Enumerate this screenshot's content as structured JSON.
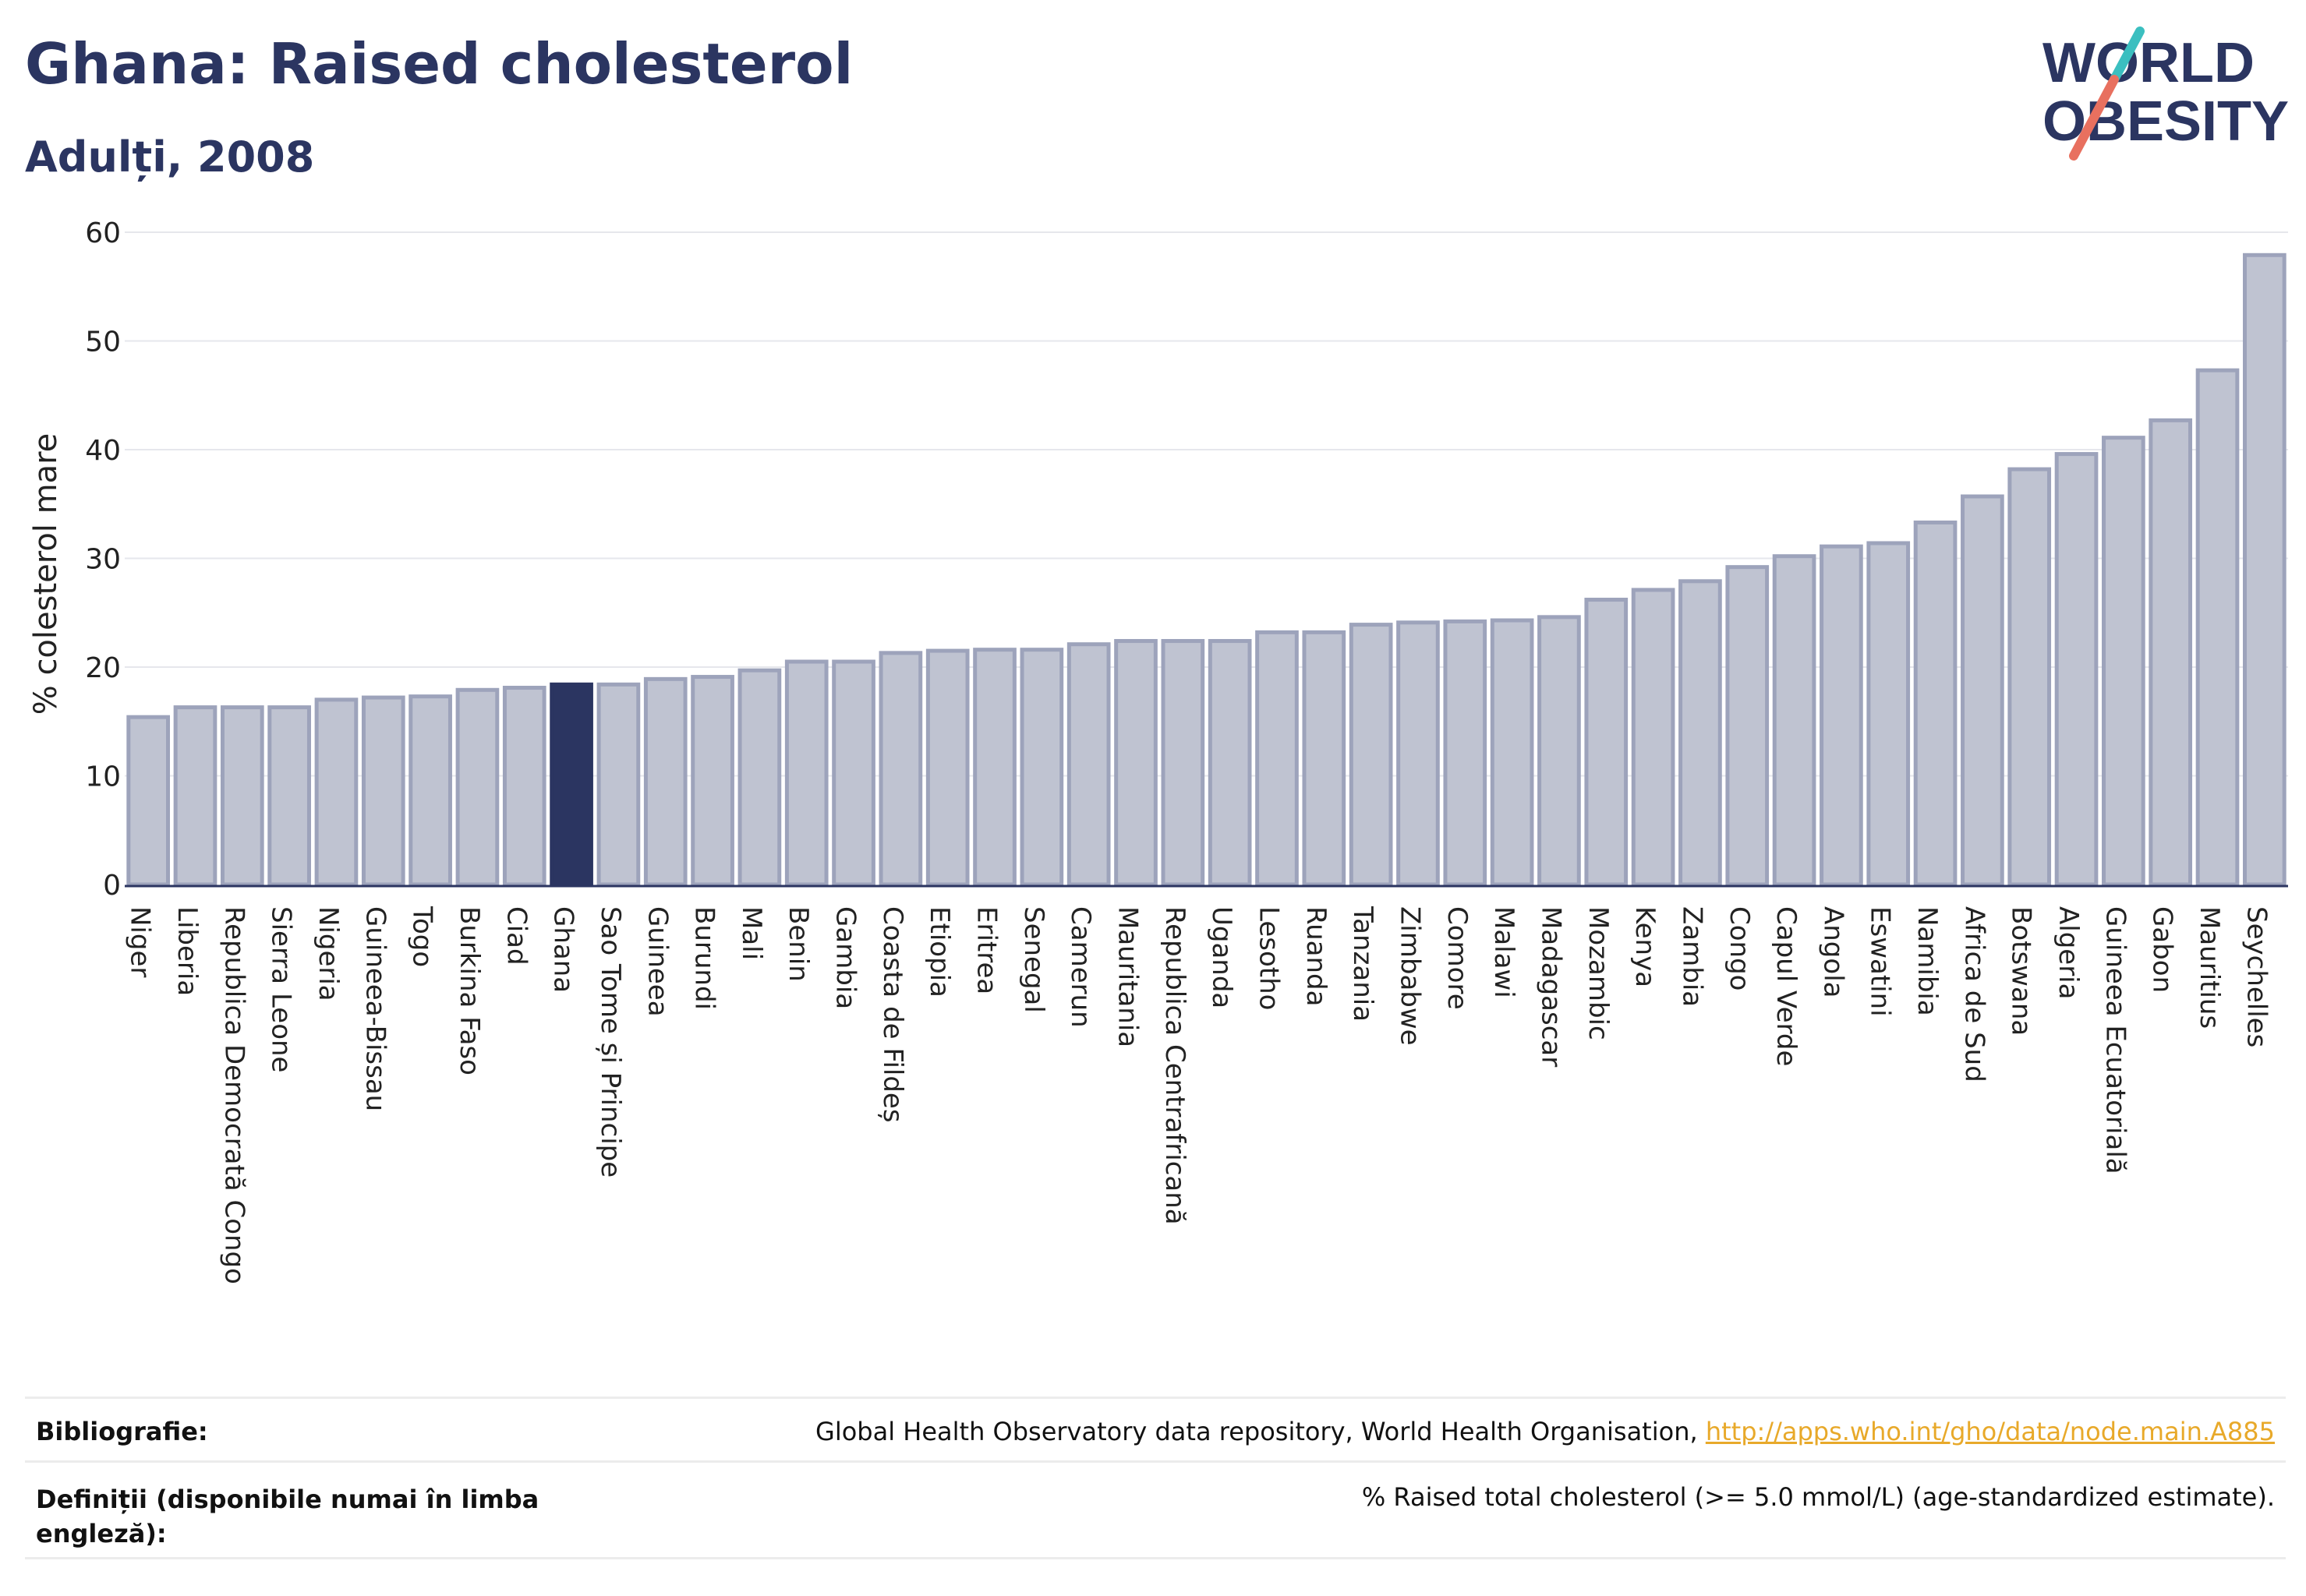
{
  "header": {
    "title": "Ghana: Raised cholesterol",
    "subtitle": "Adulți, 2008"
  },
  "logo": {
    "line1": "WORLD",
    "line2": "OBESITY"
  },
  "colors": {
    "bar": "#bfc3d1",
    "bar_stroke": "#9da3bb",
    "highlight": "#2b3561",
    "text": "#2b3561",
    "logo_slash_teal": "#3bbfc0",
    "logo_slash_coral": "#e8705f"
  },
  "chart_data": {
    "type": "bar",
    "ylabel": "% colesterol mare",
    "xlabel": "",
    "ylim": [
      0,
      60
    ],
    "yticks": [
      0,
      10,
      20,
      30,
      40,
      50,
      60
    ],
    "grid": true,
    "highlight": "Ghana",
    "categories": [
      "Niger",
      "Liberia",
      "Republica Democrată Congo",
      "Sierra Leone",
      "Nigeria",
      "Guineea-Bissau",
      "Togo",
      "Burkina Faso",
      "Ciad",
      "Ghana",
      "Sao Tome și Principe",
      "Guineea",
      "Burundi",
      "Mali",
      "Benin",
      "Gambia",
      "Coasta de Fildeș",
      "Etiopia",
      "Eritrea",
      "Senegal",
      "Camerun",
      "Mauritania",
      "Republica Centrafricană",
      "Uganda",
      "Lesotho",
      "Ruanda",
      "Tanzania",
      "Zimbabwe",
      "Comore",
      "Malawi",
      "Madagascar",
      "Mozambic",
      "Kenya",
      "Zambia",
      "Congo",
      "Capul Verde",
      "Angola",
      "Eswatini",
      "Namibia",
      "Africa de Sud",
      "Botswana",
      "Algeria",
      "Guineea Ecuatorială",
      "Gabon",
      "Mauritius",
      "Seychelles"
    ],
    "values": [
      15.4,
      16.3,
      16.3,
      16.3,
      17.0,
      17.2,
      17.3,
      17.9,
      18.1,
      18.4,
      18.4,
      18.9,
      19.1,
      19.7,
      20.5,
      20.5,
      21.3,
      21.5,
      21.6,
      21.6,
      22.1,
      22.4,
      22.4,
      22.4,
      23.2,
      23.2,
      23.9,
      24.1,
      24.2,
      24.3,
      24.6,
      26.2,
      27.1,
      27.9,
      29.2,
      30.2,
      31.1,
      31.4,
      33.3,
      35.7,
      38.2,
      39.6,
      41.1,
      42.7,
      47.3,
      57.9
    ]
  },
  "footer": {
    "bibliography_label": "Bibliografie:",
    "bibliography_text": "Global Health Observatory data repository, World Health Organisation, ",
    "bibliography_link": "http://apps.who.int/gho/data/node.main.A885",
    "definitions_label_line1": "Definiții (disponibile numai în limba",
    "definitions_label_line2": "engleză):",
    "definitions_text": "% Raised total cholesterol (>= 5.0 mmol/L) (age-standardized estimate)."
  }
}
